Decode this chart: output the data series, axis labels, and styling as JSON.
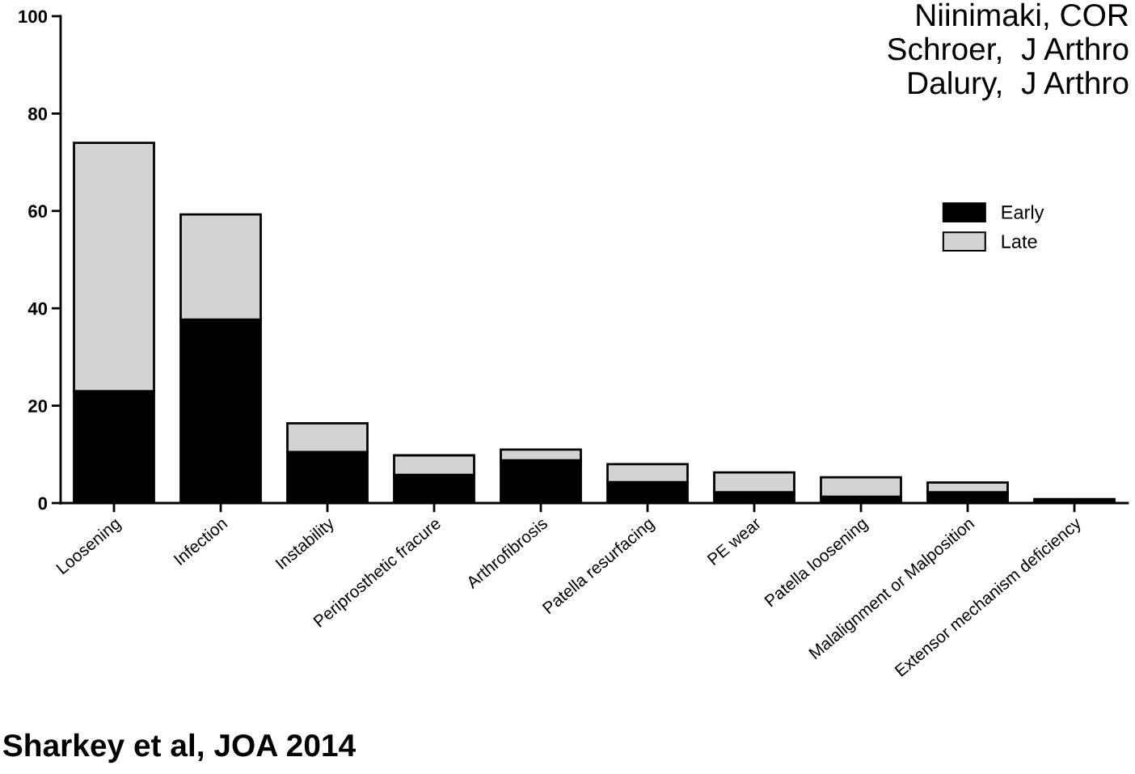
{
  "chart_data": {
    "type": "bar",
    "stacked": true,
    "categories": [
      "Loosening",
      "Infection",
      "Instability",
      "Periprosthetic fracure",
      "Arthrofibrosis",
      "Patella resurfacing",
      "PE wear",
      "Patella loosening",
      "Malalignment or Malposition",
      "Extensor mechanism deficiency"
    ],
    "series": [
      {
        "name": "Early",
        "color": "#000000",
        "values": [
          23,
          37.7,
          10.5,
          5.8,
          8.8,
          4.3,
          2.2,
          1.3,
          2.2,
          0.8
        ]
      },
      {
        "name": "Late",
        "color": "#d3d3d3",
        "values": [
          51,
          21.6,
          5.9,
          4,
          2.2,
          3.7,
          4.1,
          4,
          2,
          null
        ]
      }
    ],
    "ylim": [
      0,
      100
    ],
    "yticks": [
      0,
      20,
      40,
      60,
      80,
      100
    ],
    "legend": "top right",
    "grid": false,
    "annotations": [
      "Niinimaki, COR",
      "Schroer,  J Arthro",
      "Dalury,  J Arthro",
      "Sharkey et al, JOA 2014"
    ]
  }
}
